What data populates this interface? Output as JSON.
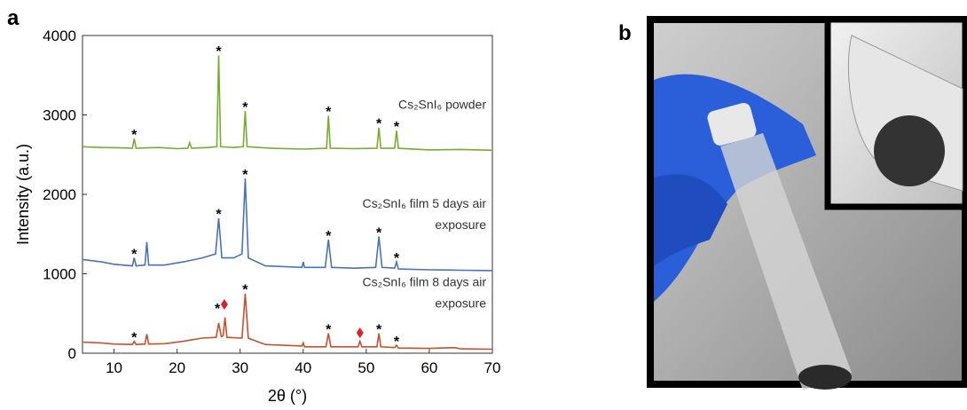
{
  "panel_labels": [
    "a",
    "b"
  ],
  "chart_data": {
    "type": "line",
    "xlabel": "2θ (°)",
    "ylabel": "Intensity (a.u.)",
    "xlim": [
      5,
      70
    ],
    "xticks": [
      10,
      20,
      30,
      40,
      50,
      60,
      70
    ],
    "ylim": [
      0,
      4000
    ],
    "yticks": [
      0,
      1000,
      2000,
      3000,
      4000
    ],
    "series": [
      {
        "name": [
          "Cs₂SnI₆ powder"
        ],
        "color": "#77ac30",
        "x": [
          5,
          8,
          11,
          12.9,
          13.2,
          13.5,
          17,
          20,
          21.7,
          22,
          22.3,
          25,
          26.3,
          26.6,
          26.9,
          29,
          30.5,
          30.8,
          31.1,
          35,
          40,
          43.7,
          44,
          44.3,
          48,
          51.7,
          52,
          52.3,
          54.5,
          54.8,
          55.1,
          60,
          65,
          70
        ],
        "values": [
          2600,
          2590,
          2585,
          2580,
          2700,
          2580,
          2590,
          2575,
          2580,
          2650,
          2580,
          2590,
          2600,
          3750,
          2600,
          2590,
          2600,
          3050,
          2600,
          2580,
          2570,
          2580,
          2990,
          2580,
          2575,
          2580,
          2840,
          2580,
          2580,
          2800,
          2580,
          2560,
          2565,
          2555
        ]
      },
      {
        "name": [
          "Cs₂SnI₆ film 5 days air",
          "exposure"
        ],
        "color": "#4a72b8",
        "x": [
          5,
          8,
          10,
          12.9,
          13.2,
          13.5,
          14.9,
          15.2,
          15.5,
          18,
          21,
          24,
          26.1,
          26.6,
          27.1,
          29,
          30.3,
          30.8,
          31.3,
          34,
          39.8,
          40,
          40.2,
          43.5,
          44,
          44.5,
          48,
          51.5,
          52,
          52.5,
          54.5,
          54.8,
          55.1,
          60,
          65,
          70
        ],
        "values": [
          1180,
          1150,
          1120,
          1100,
          1200,
          1100,
          1110,
          1400,
          1110,
          1110,
          1150,
          1200,
          1250,
          1700,
          1200,
          1200,
          1250,
          2200,
          1200,
          1100,
          1080,
          1150,
          1080,
          1080,
          1430,
          1080,
          1070,
          1080,
          1470,
          1080,
          1070,
          1150,
          1060,
          1050,
          1045,
          1040
        ]
      },
      {
        "name": [
          "Cs₂SnI₆ film 8 days air",
          "exposure"
        ],
        "color": "#c8502e",
        "x": [
          5,
          8,
          10,
          12.9,
          13.2,
          13.5,
          14.9,
          15.2,
          15.5,
          18,
          21,
          24,
          26.2,
          26.6,
          27.0,
          27.3,
          27.6,
          27.9,
          30.3,
          30.8,
          31.3,
          34,
          39.8,
          40,
          40.2,
          43.6,
          44,
          44.4,
          48.7,
          49,
          49.3,
          51.7,
          52,
          52.3,
          54.5,
          54.8,
          55.1,
          60,
          64,
          65,
          70
        ],
        "values": [
          140,
          130,
          115,
          110,
          150,
          110,
          115,
          240,
          115,
          120,
          150,
          190,
          200,
          380,
          210,
          220,
          450,
          200,
          190,
          750,
          190,
          110,
          90,
          130,
          80,
          80,
          250,
          80,
          80,
          150,
          80,
          80,
          250,
          80,
          70,
          100,
          65,
          60,
          70,
          55,
          50
        ]
      }
    ],
    "markers": {
      "label": "*",
      "points": [
        {
          "x": 13.2,
          "y": 2780
        },
        {
          "x": 26.6,
          "y": 3830
        },
        {
          "x": 30.8,
          "y": 3130
        },
        {
          "x": 44,
          "y": 3070
        },
        {
          "x": 52,
          "y": 2920
        },
        {
          "x": 54.8,
          "y": 2880
        },
        {
          "x": 13.2,
          "y": 1280
        },
        {
          "x": 26.6,
          "y": 1780
        },
        {
          "x": 30.8,
          "y": 2280
        },
        {
          "x": 44,
          "y": 1510
        },
        {
          "x": 52,
          "y": 1550
        },
        {
          "x": 54.8,
          "y": 1230
        },
        {
          "x": 13.2,
          "y": 230
        },
        {
          "x": 26.4,
          "y": 590
        },
        {
          "x": 30.8,
          "y": 830
        },
        {
          "x": 44,
          "y": 330
        },
        {
          "x": 52,
          "y": 330
        },
        {
          "x": 54.8,
          "y": 180
        }
      ]
    },
    "diamonds": {
      "color": "#d9232a",
      "points": [
        {
          "x": 27.5,
          "y": 615
        },
        {
          "x": 49,
          "y": 257
        }
      ]
    }
  }
}
